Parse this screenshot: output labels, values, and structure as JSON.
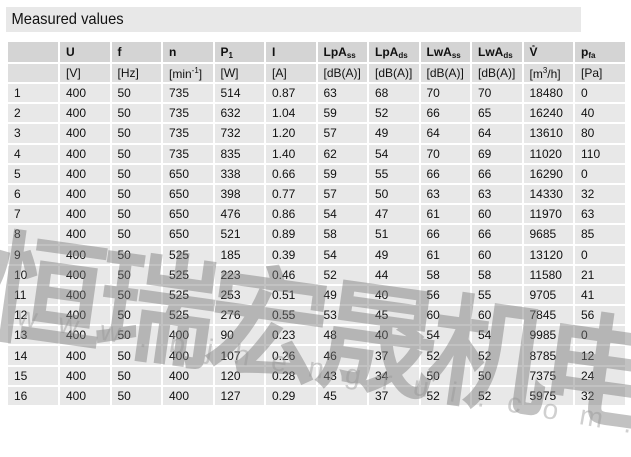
{
  "title": "Measured values",
  "columns": [
    {
      "base": "",
      "sub": "",
      "unit": ""
    },
    {
      "base": "U",
      "sub": "",
      "unit": "[V]"
    },
    {
      "base": "f",
      "sub": "",
      "unit": "[Hz]"
    },
    {
      "base": "n",
      "sub": "",
      "unit": "[min-1]"
    },
    {
      "base": "P",
      "sub": "1",
      "unit": "[W]"
    },
    {
      "base": "I",
      "sub": "",
      "unit": "[A]"
    },
    {
      "base": "LpA",
      "sub": "ss",
      "unit": "[dB(A)]"
    },
    {
      "base": "LpA",
      "sub": "ds",
      "unit": "[dB(A)]"
    },
    {
      "base": "LwA",
      "sub": "ss",
      "unit": "[dB(A)]"
    },
    {
      "base": "LwA",
      "sub": "ds",
      "unit": "[dB(A)]"
    },
    {
      "base": "V̊",
      "sub": "",
      "unit": "[m3/h]"
    },
    {
      "base": "p",
      "sub": "fa",
      "unit": "[Pa]"
    }
  ],
  "rows": [
    [
      "1",
      "400",
      "50",
      "735",
      "514",
      "0.87",
      "63",
      "68",
      "70",
      "70",
      "18480",
      "0"
    ],
    [
      "2",
      "400",
      "50",
      "735",
      "632",
      "1.04",
      "59",
      "52",
      "66",
      "65",
      "16240",
      "40"
    ],
    [
      "3",
      "400",
      "50",
      "735",
      "732",
      "1.20",
      "57",
      "49",
      "64",
      "64",
      "13610",
      "80"
    ],
    [
      "4",
      "400",
      "50",
      "735",
      "835",
      "1.40",
      "62",
      "54",
      "70",
      "69",
      "11020",
      "110"
    ],
    [
      "5",
      "400",
      "50",
      "650",
      "338",
      "0.66",
      "59",
      "55",
      "66",
      "66",
      "16290",
      "0"
    ],
    [
      "6",
      "400",
      "50",
      "650",
      "398",
      "0.77",
      "57",
      "50",
      "63",
      "63",
      "14330",
      "32"
    ],
    [
      "7",
      "400",
      "50",
      "650",
      "476",
      "0.86",
      "54",
      "47",
      "61",
      "60",
      "11970",
      "63"
    ],
    [
      "8",
      "400",
      "50",
      "650",
      "521",
      "0.89",
      "58",
      "51",
      "66",
      "66",
      "9685",
      "85"
    ],
    [
      "9",
      "400",
      "50",
      "525",
      "185",
      "0.39",
      "54",
      "49",
      "61",
      "60",
      "13120",
      "0"
    ],
    [
      "10",
      "400",
      "50",
      "525",
      "223",
      "0.46",
      "52",
      "44",
      "58",
      "58",
      "11580",
      "21"
    ],
    [
      "11",
      "400",
      "50",
      "525",
      "253",
      "0.51",
      "49",
      "40",
      "56",
      "55",
      "9705",
      "41"
    ],
    [
      "12",
      "400",
      "50",
      "525",
      "276",
      "0.55",
      "53",
      "45",
      "60",
      "60",
      "7845",
      "56"
    ],
    [
      "13",
      "400",
      "50",
      "400",
      "90",
      "0.23",
      "48",
      "40",
      "54",
      "54",
      "9985",
      "0"
    ],
    [
      "14",
      "400",
      "50",
      "400",
      "107",
      "0.26",
      "46",
      "37",
      "52",
      "52",
      "8785",
      "12"
    ],
    [
      "15",
      "400",
      "50",
      "400",
      "120",
      "0.28",
      "43",
      "34",
      "50",
      "50",
      "7375",
      "24"
    ],
    [
      "16",
      "400",
      "50",
      "400",
      "127",
      "0.29",
      "45",
      "37",
      "52",
      "52",
      "5975",
      "32"
    ]
  ],
  "watermark": {
    "text": "恒瑞宏晟机电",
    "url": "www.bjhengrui.com.cn"
  }
}
